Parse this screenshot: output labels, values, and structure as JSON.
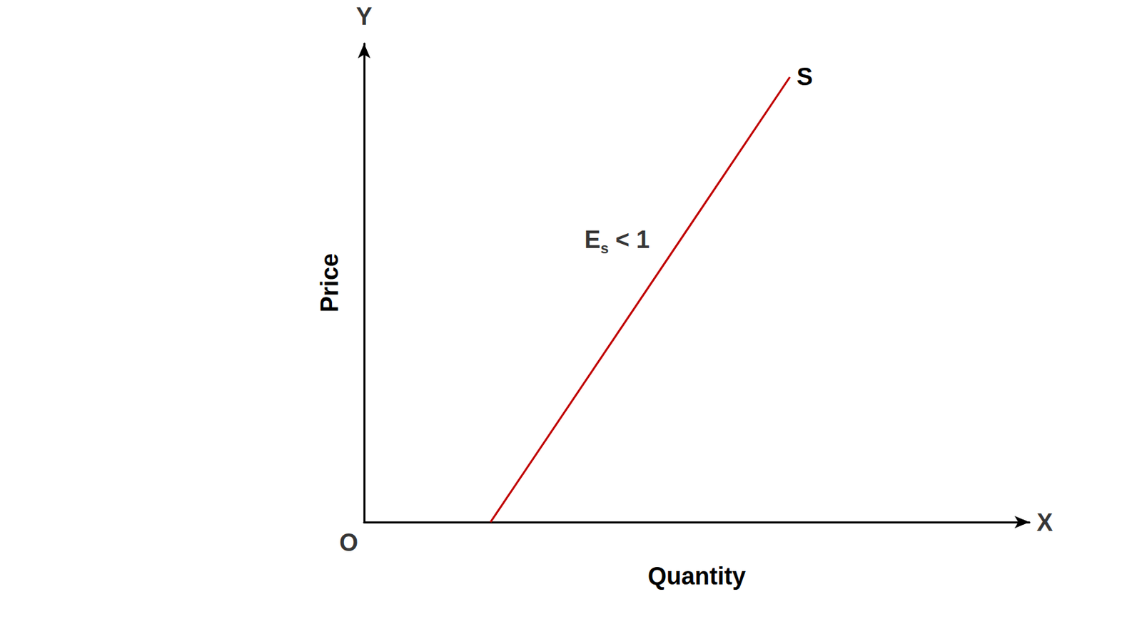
{
  "chart_data": {
    "type": "line",
    "xlabel": "Quantity",
    "ylabel": "Price",
    "xlim": [
      0,
      10
    ],
    "ylim": [
      0,
      10
    ],
    "grid": false,
    "tick_labels": false,
    "series": [
      {
        "name": "S",
        "color": "#c00000",
        "x": [
          1.9,
          6.4
        ],
        "values": [
          0,
          9.3
        ]
      }
    ],
    "annotations": [
      {
        "text": "Y",
        "x": 0,
        "y": 10,
        "position": "top"
      },
      {
        "text": "X",
        "x": 10,
        "y": 0,
        "position": "right"
      },
      {
        "text": "O",
        "x": 0,
        "y": 0,
        "position": "bottom-left"
      },
      {
        "text": "E",
        "subscript": "s",
        "after": " < 1",
        "x": 3.2,
        "y": 5.9,
        "position": "right"
      }
    ]
  }
}
